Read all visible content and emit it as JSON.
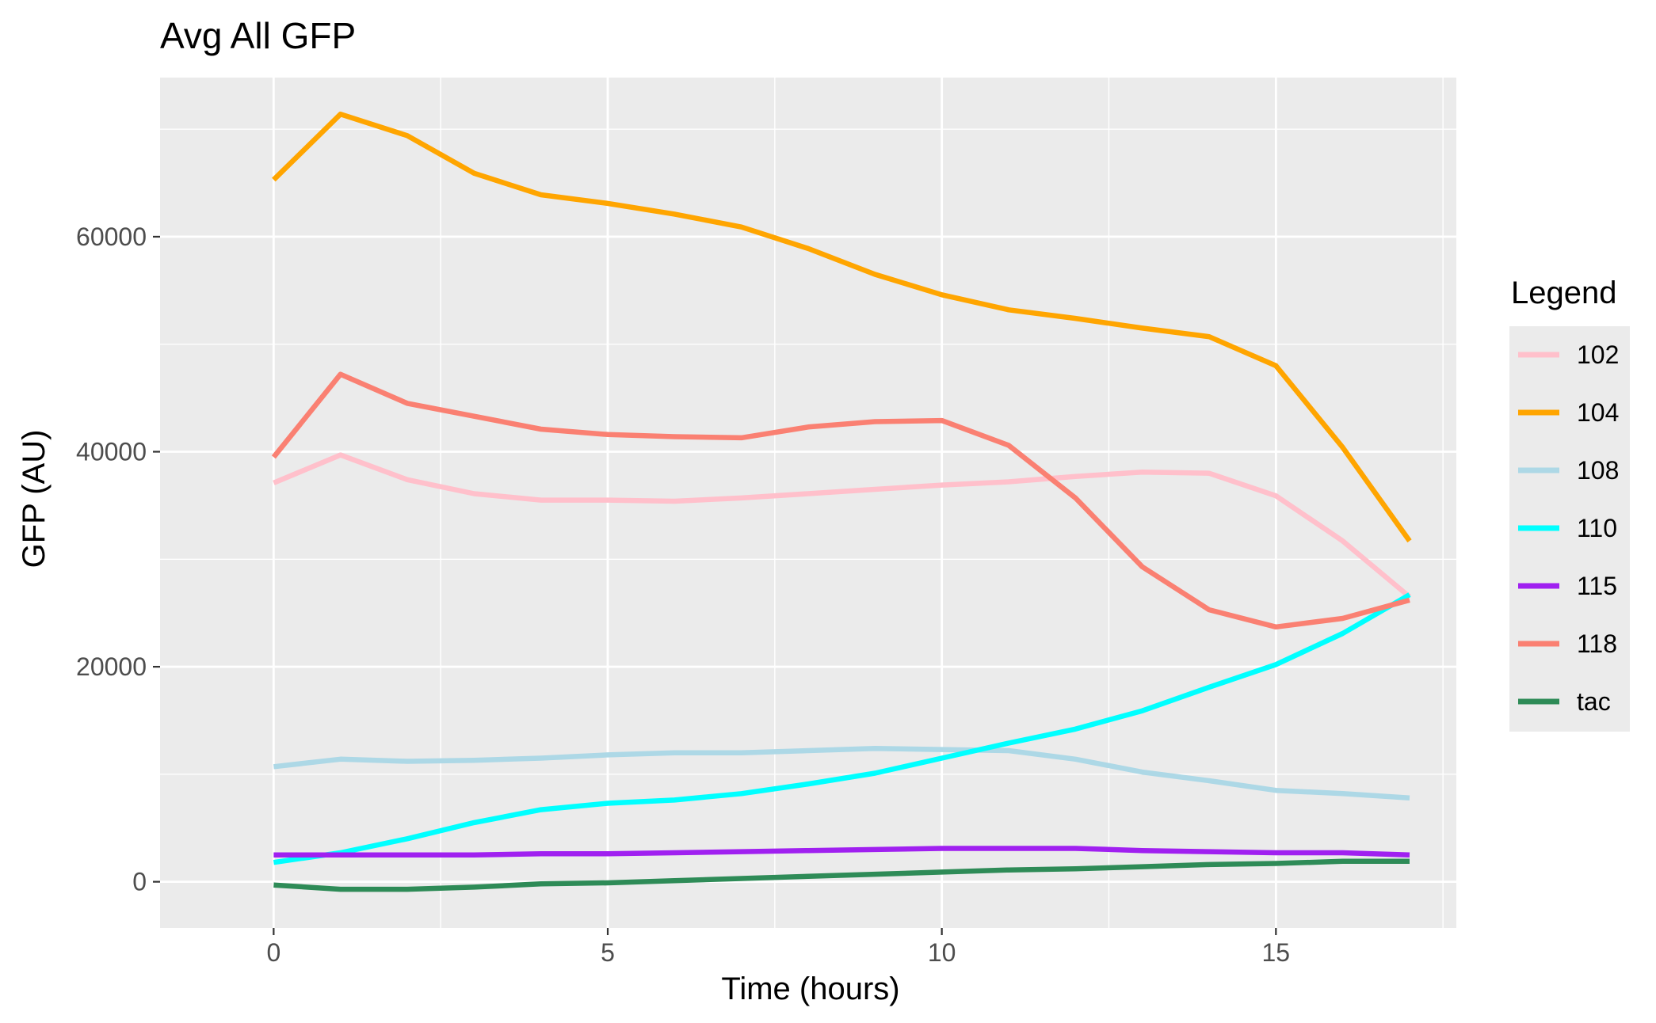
{
  "chart_data": {
    "type": "line",
    "title": "Avg All GFP",
    "xlabel": "Time (hours)",
    "ylabel": "GFP (AU)",
    "xlim": [
      -1.7,
      17.7
    ],
    "ylim": [
      -4300,
      74800
    ],
    "x_ticks": [
      0,
      5,
      10,
      15
    ],
    "x_tick_labels": [
      "0",
      "5",
      "10",
      "15"
    ],
    "y_ticks": [
      0,
      20000,
      40000,
      60000
    ],
    "y_tick_labels": [
      "0",
      "20000",
      "40000",
      "60000"
    ],
    "grid": true,
    "legend": {
      "title": "Legend",
      "position": "right"
    },
    "x": [
      0,
      1,
      2,
      3,
      4,
      5,
      6,
      7,
      8,
      9,
      10,
      11,
      12,
      13,
      14,
      15,
      16,
      17
    ],
    "series": [
      {
        "name": "102",
        "color": "#FFC0CB",
        "values": [
          37100,
          39700,
          37400,
          36100,
          35500,
          35500,
          35400,
          35700,
          36100,
          36500,
          36900,
          37200,
          37700,
          38100,
          38000,
          35900,
          31700,
          26500
        ]
      },
      {
        "name": "104",
        "color": "#FFA500",
        "values": [
          65300,
          71400,
          69400,
          65900,
          63900,
          63100,
          62100,
          60900,
          58900,
          56500,
          54600,
          53200,
          52400,
          51500,
          50700,
          48000,
          40400,
          31700
        ]
      },
      {
        "name": "108",
        "color": "#ADD8E6",
        "values": [
          10700,
          11400,
          11200,
          11300,
          11500,
          11800,
          12000,
          12000,
          12200,
          12400,
          12300,
          12200,
          11400,
          10200,
          9400,
          8500,
          8200,
          7800
        ]
      },
      {
        "name": "110",
        "color": "#00FFFF",
        "values": [
          1800,
          2700,
          4000,
          5500,
          6700,
          7300,
          7600,
          8200,
          9100,
          10100,
          11500,
          12900,
          14200,
          15900,
          18100,
          20200,
          23100,
          26700
        ]
      },
      {
        "name": "115",
        "color": "#A020F0",
        "values": [
          2500,
          2500,
          2500,
          2500,
          2600,
          2600,
          2700,
          2800,
          2900,
          3000,
          3100,
          3100,
          3100,
          2900,
          2800,
          2700,
          2700,
          2500
        ]
      },
      {
        "name": "118",
        "color": "#FA8072",
        "values": [
          39500,
          47200,
          44500,
          43300,
          42100,
          41600,
          41400,
          41300,
          42300,
          42800,
          42900,
          40600,
          35700,
          29300,
          25300,
          23700,
          24500,
          26200
        ]
      },
      {
        "name": "tac",
        "color": "#2E8B57",
        "values": [
          -300,
          -700,
          -700,
          -500,
          -200,
          -100,
          100,
          300,
          500,
          700,
          900,
          1100,
          1200,
          1400,
          1600,
          1700,
          1900,
          1900
        ]
      }
    ]
  }
}
